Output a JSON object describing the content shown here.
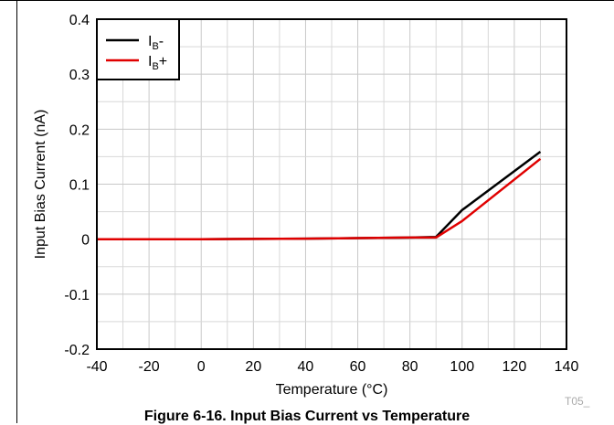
{
  "caption": "Figure 6-16. Input Bias Current vs Temperature",
  "figure_tag": "T05_",
  "chart_data": {
    "type": "line",
    "title": "",
    "xlabel": "Temperature (°C)",
    "ylabel": "Input Bias Current  (nA)",
    "xlim": [
      -40,
      140
    ],
    "ylim": [
      -0.2,
      0.4
    ],
    "xticks": [
      "-40",
      "-20",
      "0",
      "20",
      "40",
      "60",
      "80",
      "100",
      "120",
      "140"
    ],
    "yticks": [
      "0.4",
      "0.3",
      "0.2",
      "0.1",
      "0",
      "-0.1",
      "-0.2"
    ],
    "grid": true,
    "legend_position": "top-left",
    "series": [
      {
        "name": "IB-",
        "label_main": "I",
        "label_sub": "B",
        "label_suffix": "-",
        "color": "#000000",
        "points": [
          [
            -40,
            0
          ],
          [
            0,
            0
          ],
          [
            40,
            0.001
          ],
          [
            60,
            0.002
          ],
          [
            80,
            0.003
          ],
          [
            90,
            0.004
          ],
          [
            100,
            0.053
          ],
          [
            130,
            0.159
          ]
        ]
      },
      {
        "name": "IB+",
        "label_main": "I",
        "label_sub": "B",
        "label_suffix": "+",
        "color": "#e00000",
        "points": [
          [
            -40,
            0
          ],
          [
            0,
            0
          ],
          [
            40,
            0.001
          ],
          [
            60,
            0.002
          ],
          [
            80,
            0.003
          ],
          [
            90,
            0.003
          ],
          [
            100,
            0.033
          ],
          [
            130,
            0.146
          ]
        ]
      }
    ]
  }
}
